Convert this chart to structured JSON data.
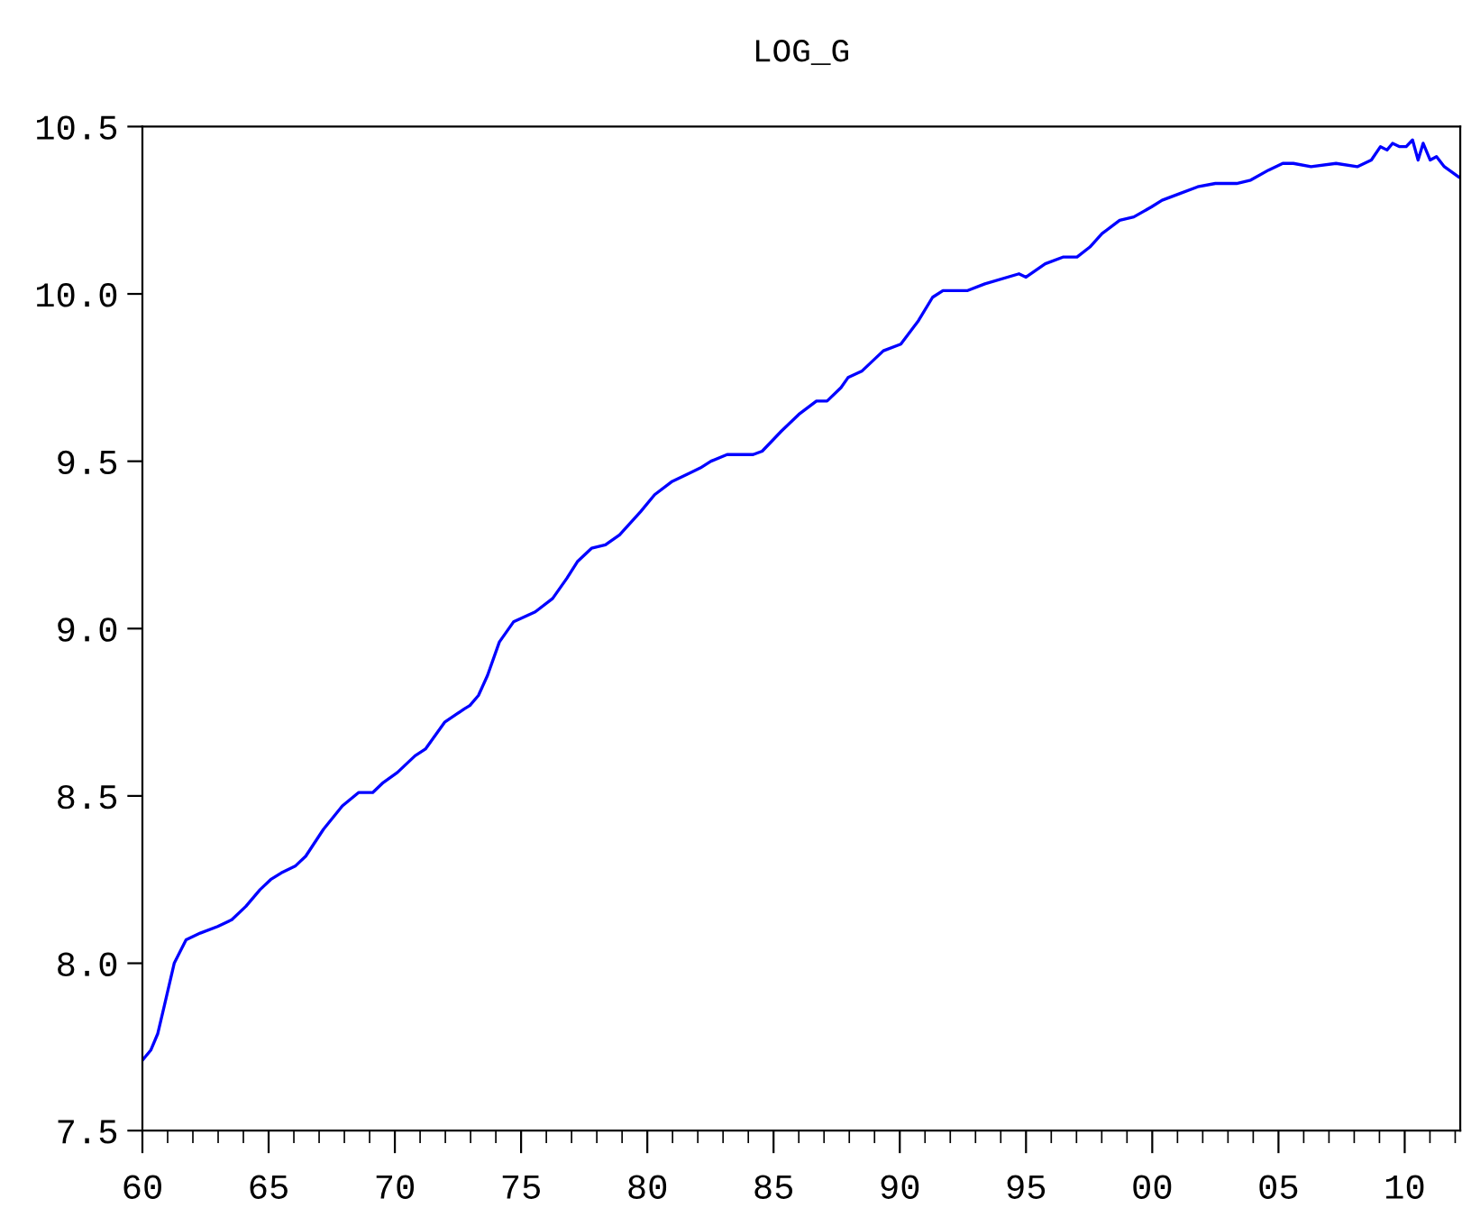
{
  "chart_data": {
    "type": "line",
    "title": "LOG_G",
    "xlim": [
      1960,
      2012.2
    ],
    "xticks": [
      {
        "value": 1960,
        "label": "60"
      },
      {
        "value": 1965,
        "label": "65"
      },
      {
        "value": 1970,
        "label": "70"
      },
      {
        "value": 1975,
        "label": "75"
      },
      {
        "value": 1980,
        "label": "80"
      },
      {
        "value": 1985,
        "label": "85"
      },
      {
        "value": 1990,
        "label": "90"
      },
      {
        "value": 1995,
        "label": "95"
      },
      {
        "value": 2000,
        "label": "00"
      },
      {
        "value": 2005,
        "label": "05"
      },
      {
        "value": 2010,
        "label": "10"
      }
    ],
    "ylim": [
      7.5,
      10.5
    ],
    "yticks": [
      {
        "value": 7.5,
        "label": "7.5"
      },
      {
        "value": 8.0,
        "label": "8.0"
      },
      {
        "value": 8.5,
        "label": "8.5"
      },
      {
        "value": 9.0,
        "label": "9.0"
      },
      {
        "value": 9.5,
        "label": "9.5"
      },
      {
        "value": 10.0,
        "label": "10.0"
      },
      {
        "value": 10.5,
        "label": "10.5"
      }
    ],
    "grid": false,
    "marker": "none",
    "line_style": "solid",
    "series": [
      {
        "color": "#0000ff",
        "x": [
          1960.0,
          1960.33,
          1960.61,
          1960.89,
          1961.26,
          1961.73,
          1962.29,
          1962.98,
          1963.54,
          1964.1,
          1964.66,
          1965.08,
          1965.5,
          1966.05,
          1966.47,
          1967.17,
          1967.92,
          1968.56,
          1969.12,
          1969.54,
          1970.1,
          1970.8,
          1971.21,
          1971.97,
          1972.75,
          1972.97,
          1973.31,
          1973.67,
          1974.14,
          1974.7,
          1975.56,
          1976.25,
          1976.81,
          1977.23,
          1977.79,
          1978.34,
          1978.9,
          1979.74,
          1980.29,
          1980.99,
          1981.55,
          1982.1,
          1982.52,
          1983.16,
          1983.77,
          1984.19,
          1984.55,
          1985.31,
          1986.0,
          1986.7,
          1987.12,
          1987.67,
          1987.95,
          1988.51,
          1989.35,
          1990.04,
          1990.74,
          1991.3,
          1991.71,
          1992.69,
          1993.37,
          1994.72,
          1995.0,
          1995.76,
          1996.46,
          1997.02,
          1997.53,
          1998.01,
          1998.71,
          1999.27,
          1999.97,
          2000.39,
          2001.1,
          2001.8,
          2002.5,
          2003.34,
          2003.9,
          2004.61,
          2005.17,
          2005.59,
          2006.29,
          2007.28,
          2008.12,
          2008.68,
          2009.04,
          2009.3,
          2009.52,
          2009.8,
          2010.06,
          2010.31,
          2010.53,
          2010.73,
          2011.01,
          2011.26,
          2011.57,
          2012.13
        ],
        "values": [
          7.71,
          7.74,
          7.79,
          7.88,
          8.0,
          8.07,
          8.09,
          8.11,
          8.13,
          8.17,
          8.22,
          8.25,
          8.27,
          8.29,
          8.32,
          8.4,
          8.47,
          8.51,
          8.51,
          8.54,
          8.57,
          8.62,
          8.64,
          8.72,
          8.76,
          8.77,
          8.8,
          8.86,
          8.96,
          9.02,
          9.05,
          9.09,
          9.15,
          9.2,
          9.24,
          9.25,
          9.28,
          9.35,
          9.4,
          9.44,
          9.46,
          9.48,
          9.5,
          9.52,
          9.52,
          9.52,
          9.53,
          9.59,
          9.64,
          9.68,
          9.68,
          9.72,
          9.75,
          9.77,
          9.83,
          9.85,
          9.92,
          9.99,
          10.01,
          10.01,
          10.03,
          10.06,
          10.05,
          10.09,
          10.11,
          10.11,
          10.14,
          10.18,
          10.22,
          10.23,
          10.26,
          10.28,
          10.3,
          10.32,
          10.33,
          10.33,
          10.34,
          10.37,
          10.39,
          10.39,
          10.38,
          10.39,
          10.38,
          10.4,
          10.44,
          10.43,
          10.45,
          10.44,
          10.44,
          10.46,
          10.4,
          10.45,
          10.4,
          10.41,
          10.38,
          10.35
        ]
      }
    ]
  }
}
